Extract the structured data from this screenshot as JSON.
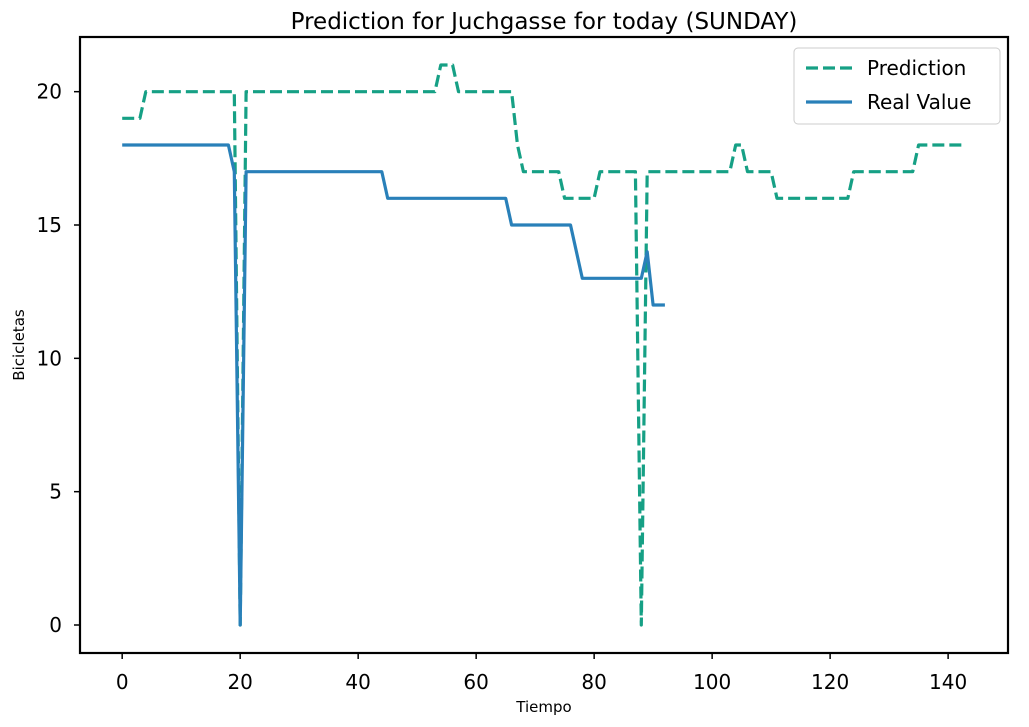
{
  "chart_data": {
    "type": "line",
    "title": "Prediction for Juchgasse for today (SUNDAY)",
    "xlabel": "Tiempo",
    "ylabel": "Bicicletas",
    "xlim": [
      -7.15,
      150.15
    ],
    "ylim": [
      -1.05,
      22.05
    ],
    "xticks": [
      0,
      20,
      40,
      60,
      80,
      100,
      120,
      140
    ],
    "yticks": [
      0,
      5,
      10,
      15,
      20
    ],
    "grid": false,
    "legend_position": "top-right",
    "series": [
      {
        "name": "Prediction",
        "color": "#16a085",
        "style": "dashed",
        "points": [
          [
            0,
            19
          ],
          [
            3,
            19
          ],
          [
            4,
            20
          ],
          [
            19,
            20
          ],
          [
            20,
            0
          ],
          [
            21,
            20
          ],
          [
            53,
            20
          ],
          [
            54,
            21
          ],
          [
            56,
            21
          ],
          [
            57,
            20
          ],
          [
            66,
            20
          ],
          [
            67,
            18
          ],
          [
            68,
            17
          ],
          [
            74,
            17
          ],
          [
            75,
            16
          ],
          [
            80,
            16
          ],
          [
            81,
            17
          ],
          [
            87,
            17
          ],
          [
            88,
            0
          ],
          [
            89,
            17
          ],
          [
            103,
            17
          ],
          [
            104,
            18
          ],
          [
            105,
            18
          ],
          [
            106,
            17
          ],
          [
            110,
            17
          ],
          [
            111,
            16
          ],
          [
            123,
            16
          ],
          [
            124,
            17
          ],
          [
            134,
            17
          ],
          [
            135,
            18
          ],
          [
            143,
            18
          ]
        ]
      },
      {
        "name": "Real Value",
        "color": "#2980b9",
        "style": "solid",
        "points": [
          [
            0,
            18
          ],
          [
            18,
            18
          ],
          [
            19,
            17
          ],
          [
            20,
            0
          ],
          [
            21,
            17
          ],
          [
            44,
            17
          ],
          [
            45,
            16
          ],
          [
            65,
            16
          ],
          [
            66,
            15
          ],
          [
            76,
            15
          ],
          [
            78,
            13
          ],
          [
            88,
            13
          ],
          [
            89,
            14
          ],
          [
            90,
            12
          ],
          [
            92,
            12
          ]
        ]
      }
    ]
  }
}
